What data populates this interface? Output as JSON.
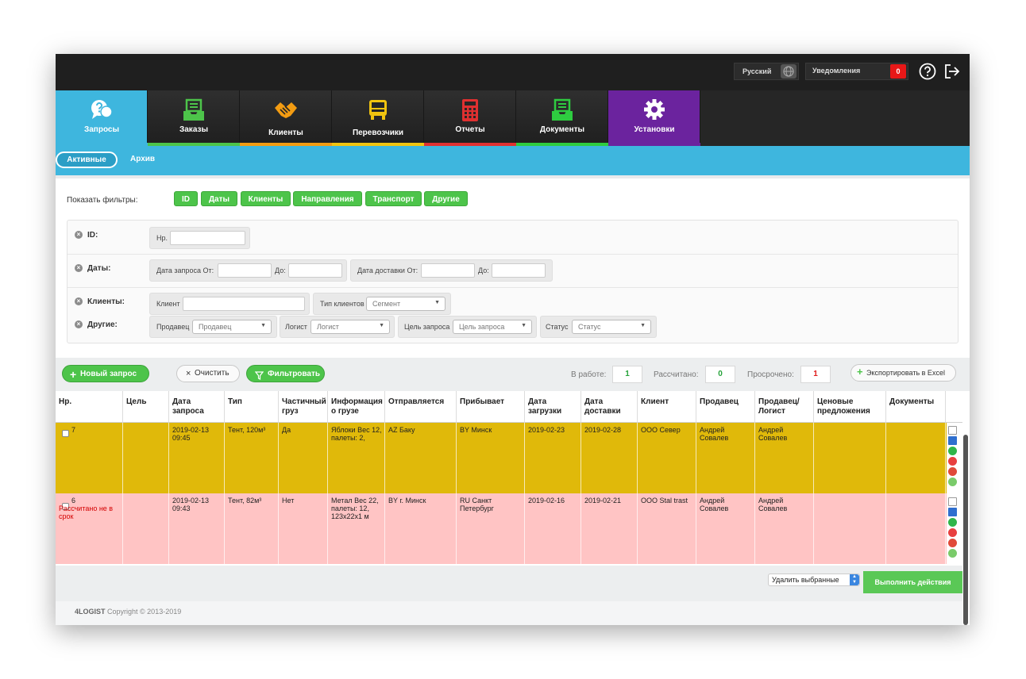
{
  "topbar": {
    "language": "Русский",
    "notifications_label": "Уведомления",
    "notifications_count": "0"
  },
  "nav": {
    "tabs": [
      {
        "label": "Запросы",
        "icon": "chat-question-icon",
        "color": "#3eb6de"
      },
      {
        "label": "Заказы",
        "icon": "inbox-tray-icon",
        "color": "#4dc44a"
      },
      {
        "label": "Клиенты",
        "icon": "handshake-icon",
        "color": "#f39c12"
      },
      {
        "label": "Перевозчики",
        "icon": "truck-icon",
        "color": "#f1c40f"
      },
      {
        "label": "Отчеты",
        "icon": "calculator-icon",
        "color": "#e03030"
      },
      {
        "label": "Документы",
        "icon": "document-tray-icon",
        "color": "#2ecc40"
      },
      {
        "label": "Установки",
        "icon": "gear-icon",
        "color": "#6b239e"
      }
    ]
  },
  "subnav": {
    "active": "Активные",
    "archive": "Архив"
  },
  "filters": {
    "show_label": "Показать фильтры:",
    "chips": [
      "ID",
      "Даты",
      "Клиенты",
      "Направления",
      "Транспорт",
      "Другие"
    ],
    "id_label": "ID:",
    "id_field": "Нр.",
    "dates_label": "Даты:",
    "request_date_from": "Дата запроса От:",
    "to1": "До:",
    "delivery_date_from": "Дата доставки От:",
    "to2": "До:",
    "clients_label": "Клиенты:",
    "client_field": "Клиент",
    "client_type": "Тип клиентов",
    "segment": "Сегмент",
    "other_label": "Другие:",
    "seller": "Продавец",
    "seller_sel": "Продавец",
    "logist": "Логист",
    "logist_sel": "Логист",
    "goal": "Цель запроса",
    "goal_sel": "Цель запроса",
    "status": "Статус",
    "status_sel": "Статус"
  },
  "actions": {
    "new_request": "Новый запрос",
    "clear": "Очистить",
    "filter": "Фильтровать",
    "in_work_label": "В работе:",
    "in_work": "1",
    "calculated_label": "Рассчитано:",
    "calculated": "0",
    "overdue_label": "Просрочено:",
    "overdue": "1",
    "export": "Экспортировать в Excel"
  },
  "table": {
    "headers": [
      "Нр.",
      "Цель",
      "Дата запроса",
      "Тип",
      "Частичный груз",
      "Информация о грузе",
      "Отправляется",
      "Прибывает",
      "Дата загрузки",
      "Дата доставки",
      "Клиент",
      "Продавец",
      "Продавец/ Логист",
      "Ценовые предложения",
      "Документы"
    ],
    "rows": [
      {
        "nr": "7",
        "status": "",
        "goal": "",
        "date": "2019-02-13 09:45",
        "type": "Тент, 120м³",
        "partial": "Да",
        "cargo": "Яблоки Вес 12, палеты: 2,",
        "from": "AZ Баку",
        "to": "BY Минск",
        "load": "2019-02-23",
        "delivery": "2019-02-28",
        "client": "ООО Север",
        "seller": "Андрей Совалев",
        "logist": "Андрей Совалев",
        "offers": "",
        "docs": ""
      },
      {
        "nr": "6",
        "status": "Рассчитано не в срок",
        "goal": "",
        "date": "2019-02-13 09:43",
        "type": "Тент, 82м³",
        "partial": "Нет",
        "cargo": "Метал Вес 22, палеты: 12, 123x22x1 м",
        "from": "BY г. Минск",
        "to": "RU Санкт Петербург",
        "load": "2019-02-16",
        "delivery": "2019-02-21",
        "client": "ООО Stal trast",
        "seller": "Андрей Совалев",
        "logist": "Андрей Совалев",
        "offers": "",
        "docs": ""
      }
    ]
  },
  "bottom": {
    "bulk_action": "Удалить выбранные",
    "run": "Выполнить действия"
  },
  "footer": {
    "brand": "4LOGIST",
    "copyright": "Copyright © 2013-2019"
  }
}
